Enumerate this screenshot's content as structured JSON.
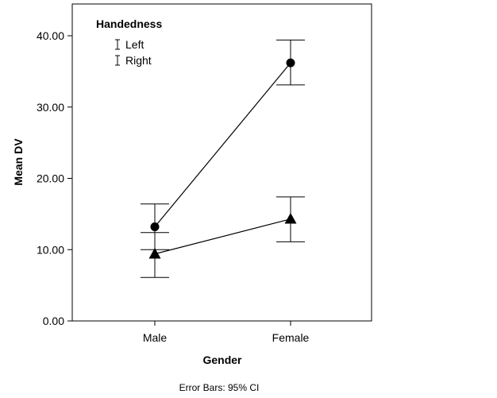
{
  "chart_data": {
    "type": "line",
    "xlabel": "Gender",
    "ylabel": "Mean DV",
    "categories": [
      "Male",
      "Female"
    ],
    "ylim": [
      0,
      40
    ],
    "yticks": [
      0,
      10,
      20,
      30,
      40
    ],
    "ytick_labels": [
      "0.00",
      "10.00",
      "20.00",
      "30.00",
      "40.00"
    ],
    "grid": false,
    "legend": {
      "title": "Handedness",
      "placement": "top-left"
    },
    "series": [
      {
        "name": "Left",
        "marker": "circle",
        "values": [
          13.2,
          36.2
        ],
        "ci_lower": [
          10.0,
          33.1
        ],
        "ci_upper": [
          16.4,
          39.4
        ]
      },
      {
        "name": "Right",
        "marker": "triangle",
        "values": [
          9.4,
          14.3
        ],
        "ci_lower": [
          6.1,
          11.1
        ],
        "ci_upper": [
          12.4,
          17.4
        ]
      }
    ],
    "footnote": "Error Bars: 95% CI",
    "colors": {
      "line": "#000000",
      "marker": "#000000",
      "background": "#ffffff"
    }
  }
}
